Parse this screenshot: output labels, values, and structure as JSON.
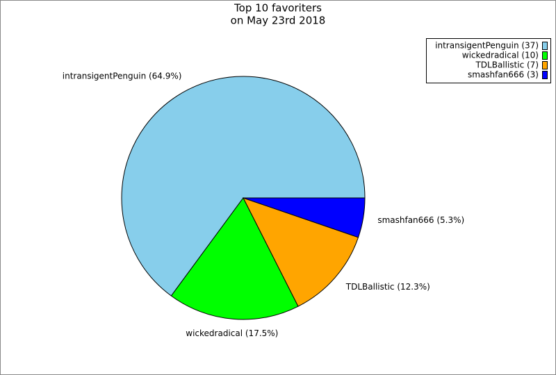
{
  "chart_data": {
    "type": "pie",
    "title": "Top 10 favoriters",
    "subtitle": "on May 23rd 2018",
    "categories": [
      "intransigentPenguin (37)",
      "wickedradical (10)",
      "TDLBallistic (7)",
      "smashfan666 (3)"
    ],
    "values": [
      37,
      10,
      7,
      3
    ],
    "value_labels": [
      "intransigentPenguin (64.9%)",
      "wickedradical (17.5%)",
      "TDLBallistic (12.3%)",
      "smashfan666 (5.3%)"
    ],
    "colors": [
      "#87ceeb",
      "#00ff00",
      "#ffa500",
      "#0000ff"
    ],
    "legend": "upper right"
  }
}
